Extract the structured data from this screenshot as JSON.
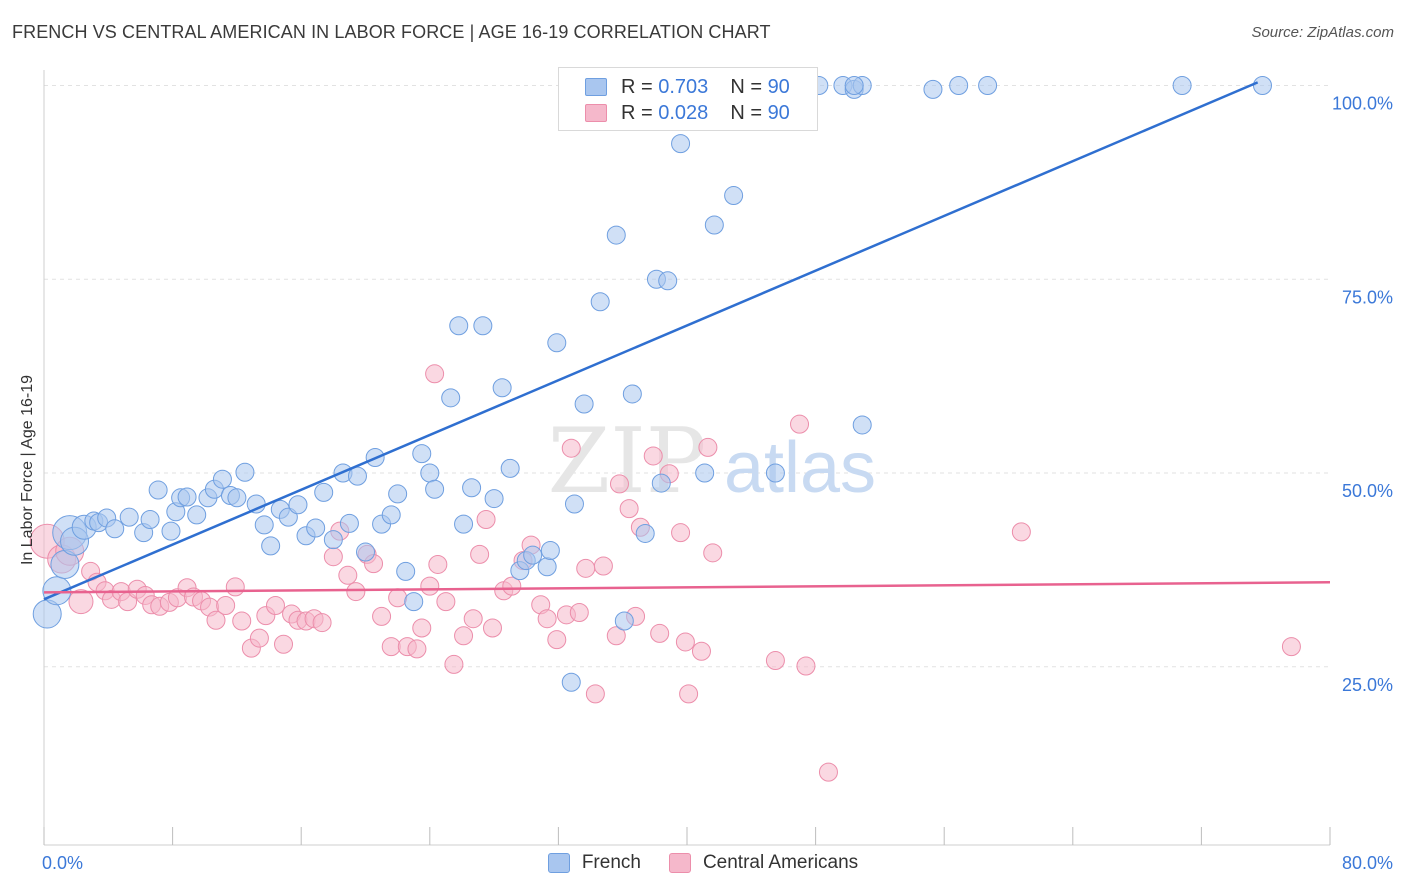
{
  "title": "FRENCH VS CENTRAL AMERICAN IN LABOR FORCE | AGE 16-19 CORRELATION CHART",
  "source": "Source: ZipAtlas.com",
  "watermark": {
    "zip": "ZIP",
    "atlas": "atlas"
  },
  "legend_top": [
    {
      "r_label": "R =",
      "r_value": "0.703",
      "n_label": "N =",
      "n_value": "90"
    },
    {
      "r_label": "R =",
      "r_value": "0.028",
      "n_label": "N =",
      "n_value": "90"
    }
  ],
  "legend_bottom": [
    {
      "label": "French"
    },
    {
      "label": "Central Americans"
    }
  ],
  "colors": {
    "french_fill": "#a9c6ef",
    "french_stroke": "#6f9fe0",
    "french_line": "#2f6fd0",
    "central_fill": "#f5b8cb",
    "central_stroke": "#ec8eab",
    "central_line": "#e8628f",
    "axis_text": "#3b78d8",
    "grid": "#e2e2e2"
  },
  "chart_data": {
    "type": "scatter",
    "title": "FRENCH VS CENTRAL AMERICAN IN LABOR FORCE | AGE 16-19 CORRELATION CHART",
    "xlabel": "",
    "ylabel": "In Labor Force | Age 16-19",
    "xlim": [
      0,
      80
    ],
    "ylim": [
      2,
      102
    ],
    "x_tick_labels": [
      "0.0%",
      "80.0%"
    ],
    "y_ticks": [
      25,
      50,
      75,
      100
    ],
    "y_tick_labels": [
      "25.0%",
      "50.0%",
      "75.0%",
      "100.0%"
    ],
    "grid": true,
    "series": [
      {
        "name": "French",
        "r": 0.703,
        "n": 90,
        "trend": {
          "x": [
            0,
            75.5
          ],
          "y": [
            33.7,
            100.4
          ]
        },
        "points": [
          [
            0.2,
            31.8,
            3
          ],
          [
            0.8,
            34.8,
            3
          ],
          [
            1.3,
            38.2,
            3
          ],
          [
            1.6,
            42.3,
            4
          ],
          [
            1.9,
            41.2,
            3
          ],
          [
            2.5,
            43.0,
            2
          ],
          [
            3.1,
            43.8,
            1
          ],
          [
            3.4,
            43.6,
            1
          ],
          [
            3.9,
            44.2,
            1
          ],
          [
            4.4,
            42.8,
            1
          ],
          [
            5.3,
            44.3,
            1
          ],
          [
            6.2,
            42.3,
            1
          ],
          [
            6.6,
            44.0,
            1
          ],
          [
            7.1,
            47.8,
            1
          ],
          [
            7.9,
            42.5,
            1
          ],
          [
            8.2,
            45.0,
            1
          ],
          [
            8.5,
            46.8,
            1
          ],
          [
            8.9,
            46.9,
            1
          ],
          [
            9.5,
            44.6,
            1
          ],
          [
            10.2,
            46.8,
            1
          ],
          [
            10.6,
            47.9,
            1
          ],
          [
            11.1,
            49.2,
            1
          ],
          [
            11.6,
            47.1,
            1
          ],
          [
            12.0,
            46.8,
            1
          ],
          [
            12.5,
            50.1,
            1
          ],
          [
            13.2,
            46.0,
            1
          ],
          [
            13.7,
            43.3,
            1
          ],
          [
            14.1,
            40.6,
            1
          ],
          [
            14.7,
            45.3,
            1
          ],
          [
            15.2,
            44.3,
            1
          ],
          [
            15.8,
            45.9,
            1
          ],
          [
            16.3,
            41.9,
            1
          ],
          [
            16.9,
            42.9,
            1
          ],
          [
            17.4,
            47.5,
            1
          ],
          [
            18.0,
            41.4,
            1
          ],
          [
            18.6,
            50.0,
            1
          ],
          [
            19.0,
            43.5,
            1
          ],
          [
            19.5,
            49.6,
            1
          ],
          [
            20.0,
            39.8,
            1
          ],
          [
            20.6,
            52.0,
            1
          ],
          [
            21.0,
            43.4,
            1
          ],
          [
            21.6,
            44.6,
            1
          ],
          [
            22.0,
            47.3,
            1
          ],
          [
            22.5,
            37.3,
            1
          ],
          [
            23.0,
            33.4,
            1
          ],
          [
            23.5,
            52.5,
            1
          ],
          [
            24.0,
            50.0,
            1
          ],
          [
            24.3,
            47.9,
            1
          ],
          [
            25.3,
            59.7,
            1
          ],
          [
            25.8,
            69.0,
            1
          ],
          [
            26.1,
            43.4,
            1
          ],
          [
            26.6,
            48.1,
            1
          ],
          [
            27.3,
            69.0,
            1
          ],
          [
            28.0,
            46.7,
            1
          ],
          [
            28.5,
            61.0,
            1
          ],
          [
            29.0,
            50.6,
            1
          ],
          [
            29.6,
            37.4,
            1
          ],
          [
            30.0,
            38.7,
            1
          ],
          [
            30.4,
            39.4,
            1
          ],
          [
            31.3,
            37.9,
            1
          ],
          [
            31.5,
            40.0,
            1
          ],
          [
            31.9,
            66.8,
            1
          ],
          [
            32.8,
            23.0,
            1
          ],
          [
            33.0,
            46.0,
            1
          ],
          [
            33.6,
            58.9,
            1
          ],
          [
            34.6,
            72.1,
            1
          ],
          [
            35.6,
            80.7,
            1
          ],
          [
            36.1,
            30.9,
            1
          ],
          [
            36.6,
            60.2,
            1
          ],
          [
            37.4,
            42.2,
            1
          ],
          [
            38.1,
            75.0,
            1
          ],
          [
            38.4,
            48.7,
            1
          ],
          [
            38.8,
            74.8,
            1
          ],
          [
            39.6,
            92.5,
            1
          ],
          [
            41.1,
            50.0,
            1
          ],
          [
            41.7,
            82.0,
            1
          ],
          [
            42.9,
            85.8,
            1
          ],
          [
            45.5,
            50.0,
            1
          ],
          [
            46.4,
            100.0,
            1
          ],
          [
            48.2,
            100.0,
            1
          ],
          [
            49.7,
            100.0,
            1
          ],
          [
            50.4,
            99.5,
            1
          ],
          [
            50.9,
            100.0,
            1
          ],
          [
            50.4,
            100.0,
            1
          ],
          [
            50.9,
            56.2,
            1
          ],
          [
            55.3,
            99.5,
            1
          ],
          [
            56.9,
            100.0,
            1
          ],
          [
            58.7,
            100.0,
            1
          ],
          [
            70.8,
            100.0,
            1
          ],
          [
            75.8,
            100.0,
            1
          ]
        ]
      },
      {
        "name": "Central Americans",
        "r": 0.028,
        "n": 90,
        "trend": {
          "x": [
            0,
            80
          ],
          "y": [
            34.6,
            35.9
          ]
        },
        "points": [
          [
            0.2,
            41.2,
            4
          ],
          [
            1.1,
            38.9,
            3
          ],
          [
            1.6,
            39.9,
            3
          ],
          [
            2.3,
            33.4,
            2
          ],
          [
            2.9,
            37.3,
            1
          ],
          [
            3.3,
            35.9,
            1
          ],
          [
            3.8,
            34.8,
            1
          ],
          [
            4.2,
            33.7,
            1
          ],
          [
            4.8,
            34.7,
            1
          ],
          [
            5.2,
            33.4,
            1
          ],
          [
            5.8,
            35.0,
            1
          ],
          [
            6.3,
            34.2,
            1
          ],
          [
            6.7,
            33.0,
            1
          ],
          [
            7.2,
            32.8,
            1
          ],
          [
            7.8,
            33.3,
            1
          ],
          [
            8.3,
            33.9,
            1
          ],
          [
            8.9,
            35.2,
            1
          ],
          [
            9.3,
            34.0,
            1
          ],
          [
            9.8,
            33.5,
            1
          ],
          [
            10.3,
            32.7,
            1
          ],
          [
            10.7,
            31.0,
            1
          ],
          [
            11.3,
            32.9,
            1
          ],
          [
            11.9,
            35.3,
            1
          ],
          [
            12.3,
            30.9,
            1
          ],
          [
            12.9,
            27.4,
            1
          ],
          [
            13.4,
            28.7,
            1
          ],
          [
            13.8,
            31.6,
            1
          ],
          [
            14.4,
            32.9,
            1
          ],
          [
            14.9,
            27.9,
            1
          ],
          [
            15.4,
            31.8,
            1
          ],
          [
            15.8,
            31.0,
            1
          ],
          [
            16.3,
            30.9,
            1
          ],
          [
            16.8,
            31.2,
            1
          ],
          [
            17.3,
            30.7,
            1
          ],
          [
            18.0,
            39.2,
            1
          ],
          [
            18.4,
            42.5,
            1
          ],
          [
            18.9,
            36.8,
            1
          ],
          [
            19.4,
            34.7,
            1
          ],
          [
            20.1,
            39.5,
            1
          ],
          [
            20.5,
            38.3,
            1
          ],
          [
            21.0,
            31.5,
            1
          ],
          [
            21.6,
            27.6,
            1
          ],
          [
            22.0,
            33.9,
            1
          ],
          [
            22.6,
            27.6,
            1
          ],
          [
            23.2,
            27.3,
            1
          ],
          [
            23.5,
            30.0,
            1
          ],
          [
            24.0,
            35.4,
            1
          ],
          [
            24.5,
            38.2,
            1
          ],
          [
            24.3,
            62.8,
            1
          ],
          [
            25.0,
            33.4,
            1
          ],
          [
            25.5,
            25.3,
            1
          ],
          [
            26.1,
            29.0,
            1
          ],
          [
            26.7,
            31.2,
            1
          ],
          [
            27.1,
            39.5,
            1
          ],
          [
            27.5,
            44.0,
            1
          ],
          [
            27.9,
            30.0,
            1
          ],
          [
            28.6,
            34.8,
            1
          ],
          [
            29.1,
            35.4,
            1
          ],
          [
            29.8,
            38.7,
            1
          ],
          [
            30.3,
            40.7,
            1
          ],
          [
            30.9,
            33.0,
            1
          ],
          [
            31.3,
            31.2,
            1
          ],
          [
            31.9,
            28.5,
            1
          ],
          [
            32.5,
            31.7,
            1
          ],
          [
            32.8,
            53.2,
            1
          ],
          [
            33.3,
            32.0,
            1
          ],
          [
            33.7,
            37.7,
            1
          ],
          [
            34.3,
            21.5,
            1
          ],
          [
            34.8,
            38.0,
            1
          ],
          [
            35.6,
            29.0,
            1
          ],
          [
            35.8,
            48.6,
            1
          ],
          [
            36.4,
            45.4,
            1
          ],
          [
            36.8,
            31.5,
            1
          ],
          [
            37.1,
            43.0,
            1
          ],
          [
            37.9,
            52.2,
            1
          ],
          [
            38.3,
            29.3,
            1
          ],
          [
            38.9,
            49.9,
            1
          ],
          [
            39.6,
            42.3,
            1
          ],
          [
            39.9,
            28.2,
            1
          ],
          [
            40.1,
            21.5,
            1
          ],
          [
            40.9,
            27.0,
            1
          ],
          [
            41.3,
            53.3,
            1
          ],
          [
            41.6,
            39.7,
            1
          ],
          [
            45.5,
            25.8,
            1
          ],
          [
            47.0,
            56.3,
            1
          ],
          [
            47.4,
            25.1,
            1
          ],
          [
            48.8,
            11.4,
            1
          ],
          [
            60.8,
            42.4,
            1
          ],
          [
            77.6,
            27.6,
            1
          ]
        ]
      }
    ]
  }
}
